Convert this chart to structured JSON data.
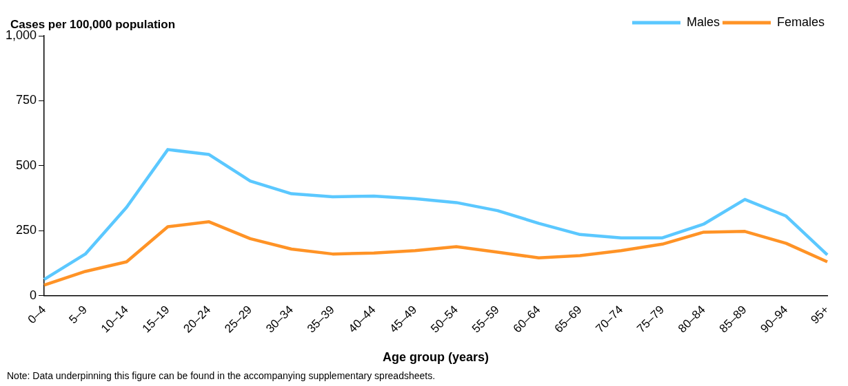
{
  "chart_data": {
    "type": "line",
    "ylabel": "Cases per 100,000 population",
    "xlabel": "Age group (years)",
    "annotations": [
      "Note: Data underpinning this figure can be found in the accompanying supplementary spreadsheets."
    ],
    "categories": [
      "0–4",
      "5–9",
      "10–14",
      "15–19",
      "20–24",
      "25–29",
      "30–34",
      "35–39",
      "40–44",
      "45–49",
      "50–54",
      "55–59",
      "60–64",
      "65–69",
      "70–74",
      "75–79",
      "80–84",
      "85–89",
      "90–94",
      "95+"
    ],
    "series": [
      {
        "name": "Males",
        "color": "#5bc8ff",
        "values": [
          62,
          160,
          340,
          562,
          543,
          441,
          392,
          380,
          383,
          373,
          358,
          327,
          278,
          235,
          222,
          222,
          275,
          370,
          306,
          157
        ]
      },
      {
        "name": "Females",
        "color": "#ff9326",
        "values": [
          40,
          93,
          130,
          265,
          284,
          219,
          179,
          160,
          164,
          173,
          188,
          167,
          145,
          154,
          173,
          198,
          244,
          247,
          201,
          130
        ]
      }
    ],
    "ylim": [
      0,
      1000
    ],
    "yticks": [
      0,
      {
        "value": 250,
        "label": "250"
      },
      {
        "value": 500,
        "label": "500"
      },
      {
        "value": 750,
        "label": "750"
      },
      {
        "value": 1000,
        "label": "1,000"
      }
    ],
    "grid": false,
    "legend": "top right",
    "marker": "none",
    "line_style": "solid"
  }
}
